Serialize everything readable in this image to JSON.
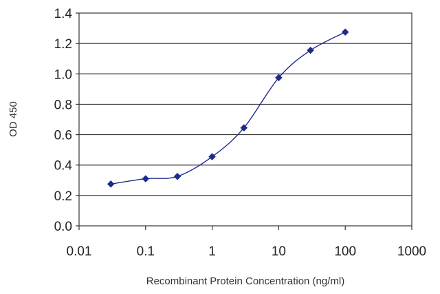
{
  "chart_data": {
    "type": "line",
    "title": "",
    "xlabel": "Recombinant Protein Concentration (ng/ml)",
    "ylabel": "OD 450",
    "x_scale": "log",
    "xlim": [
      0.01,
      1000
    ],
    "ylim": [
      0.0,
      1.4
    ],
    "x_tick_labels": [
      "0.01",
      "0.1",
      "1",
      "10",
      "100",
      "1000"
    ],
    "x_tick_values": [
      0.01,
      0.1,
      1,
      10,
      100,
      1000
    ],
    "y_tick_labels": [
      "0.0",
      "0.2",
      "0.4",
      "0.6",
      "0.8",
      "1.0",
      "1.2",
      "1.4"
    ],
    "y_tick_values": [
      0.0,
      0.2,
      0.4,
      0.6,
      0.8,
      1.0,
      1.2,
      1.4
    ],
    "grid": "horizontal",
    "legend": "none",
    "series": [
      {
        "x": [
          0.03,
          0.1,
          0.3,
          1,
          3,
          10,
          30,
          100
        ],
        "y": [
          0.275,
          0.31,
          0.325,
          0.455,
          0.645,
          0.975,
          1.155,
          1.275
        ],
        "color": "#1c2b8c"
      }
    ]
  }
}
